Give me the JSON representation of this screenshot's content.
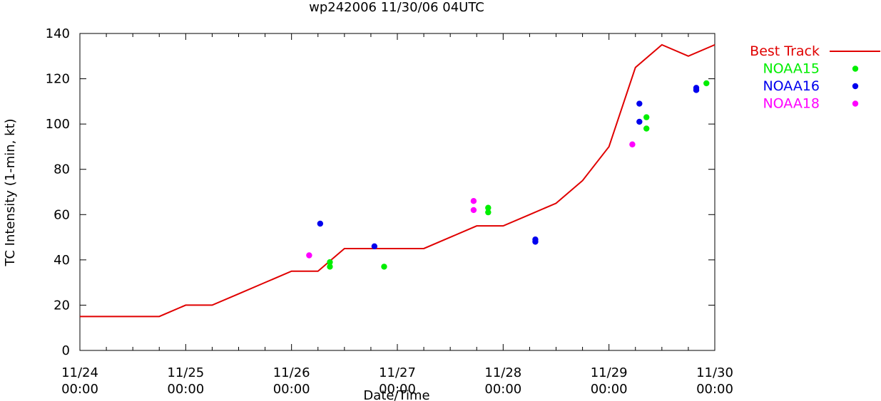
{
  "chart_data": {
    "type": "line",
    "title": "wp242006 11/30/06 04UTC",
    "xlabel": "Date/Time",
    "ylabel": "TC Intensity (1-min, kt)",
    "ylim": [
      0,
      140
    ],
    "yticks": [
      0,
      20,
      40,
      60,
      80,
      100,
      120,
      140
    ],
    "xlim_hours": [
      0,
      144
    ],
    "xticks": [
      {
        "hour": 0,
        "date": "11/24",
        "time": "00:00"
      },
      {
        "hour": 24,
        "date": "11/25",
        "time": "00:00"
      },
      {
        "hour": 48,
        "date": "11/26",
        "time": "00:00"
      },
      {
        "hour": 72,
        "date": "11/27",
        "time": "00:00"
      },
      {
        "hour": 96,
        "date": "11/28",
        "time": "00:00"
      },
      {
        "hour": 120,
        "date": "11/29",
        "time": "00:00"
      },
      {
        "hour": 144,
        "date": "11/30",
        "time": "00:00"
      }
    ],
    "legend_position": "outside-right",
    "series": [
      {
        "name": "Best Track",
        "kind": "line",
        "color": "#e00000",
        "x": [
          0,
          18,
          24,
          30,
          36,
          42,
          48,
          54,
          60,
          66,
          72,
          78,
          84,
          90,
          96,
          102,
          108,
          114,
          120,
          126,
          132,
          138,
          144
        ],
        "y": [
          15,
          15,
          20,
          20,
          25,
          30,
          35,
          35,
          45,
          45,
          45,
          45,
          50,
          55,
          55,
          60,
          65,
          75,
          90,
          125,
          135,
          130,
          135
        ]
      },
      {
        "name": "NOAA15",
        "kind": "scatter",
        "color": "#00ee00",
        "x": [
          56.7,
          56.7,
          69.0,
          92.6,
          92.6,
          128.5,
          128.5,
          142.1
        ],
        "y": [
          37,
          39,
          37,
          61,
          63,
          98,
          103,
          118
        ]
      },
      {
        "name": "NOAA16",
        "kind": "scatter",
        "color": "#0000ee",
        "x": [
          54.5,
          66.8,
          103.3,
          103.3,
          126.9,
          126.9,
          139.8,
          139.8
        ],
        "y": [
          56,
          46,
          48,
          49,
          101,
          109,
          115,
          116
        ]
      },
      {
        "name": "NOAA18",
        "kind": "scatter",
        "color": "#ff00ff",
        "x": [
          52.0,
          89.3,
          89.3,
          125.3
        ],
        "y": [
          42,
          62,
          66,
          91
        ]
      }
    ]
  }
}
